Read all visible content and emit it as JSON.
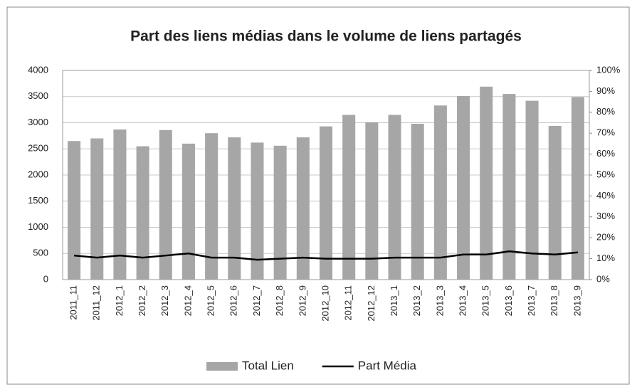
{
  "chart_data": {
    "type": "bar",
    "title": "Part des liens médias dans le volume de liens partagés",
    "categories": [
      "2011_11",
      "2011_12",
      "2012_1",
      "2012_2",
      "2012_3",
      "2012_4",
      "2012_5",
      "2012_6",
      "2012_7",
      "2012_8",
      "2012_9",
      "2012_10",
      "2012_11",
      "2012_12",
      "2013_1",
      "2013_2",
      "2013_3",
      "2013_4",
      "2013_5",
      "2013_6",
      "2013_7",
      "2013_8",
      "2013_9"
    ],
    "series": [
      {
        "name": "Total Lien",
        "color": "#a6a6a6",
        "values": [
          2650,
          2700,
          2870,
          2550,
          2860,
          2600,
          2800,
          2720,
          2620,
          2560,
          2720,
          2930,
          3150,
          3010,
          3150,
          2980,
          3330,
          3510,
          3690,
          3550,
          3420,
          2940,
          3490
        ]
      },
      {
        "name": "Part Média",
        "color": "#000000",
        "type": "line",
        "axis": "y2",
        "values": [
          11.5,
          10.5,
          11.5,
          10.5,
          11.5,
          12.5,
          10.5,
          10.5,
          9.5,
          10,
          10.5,
          10,
          10,
          10,
          10.5,
          10.5,
          10.5,
          12,
          12,
          13.5,
          12.5,
          12,
          13
        ]
      }
    ],
    "ylim": [
      0,
      4000
    ],
    "yticks": [
      0,
      500,
      1000,
      1500,
      2000,
      2500,
      3000,
      3500,
      4000
    ],
    "y2lim": [
      0,
      100
    ],
    "y2ticks": [
      {
        "value": 0,
        "label": "0%"
      },
      {
        "value": 10,
        "label": "10%"
      },
      {
        "value": 20,
        "label": "20%"
      },
      {
        "value": 30,
        "label": "30%"
      },
      {
        "value": 40,
        "label": "40%"
      },
      {
        "value": 50,
        "label": "50%"
      },
      {
        "value": 60,
        "label": "60%"
      },
      {
        "value": 70,
        "label": "70%"
      },
      {
        "value": 80,
        "label": "80%"
      },
      {
        "value": 90,
        "label": "90%"
      },
      {
        "value": 100,
        "label": "100%"
      }
    ],
    "grid": true,
    "legend": "bottom"
  }
}
